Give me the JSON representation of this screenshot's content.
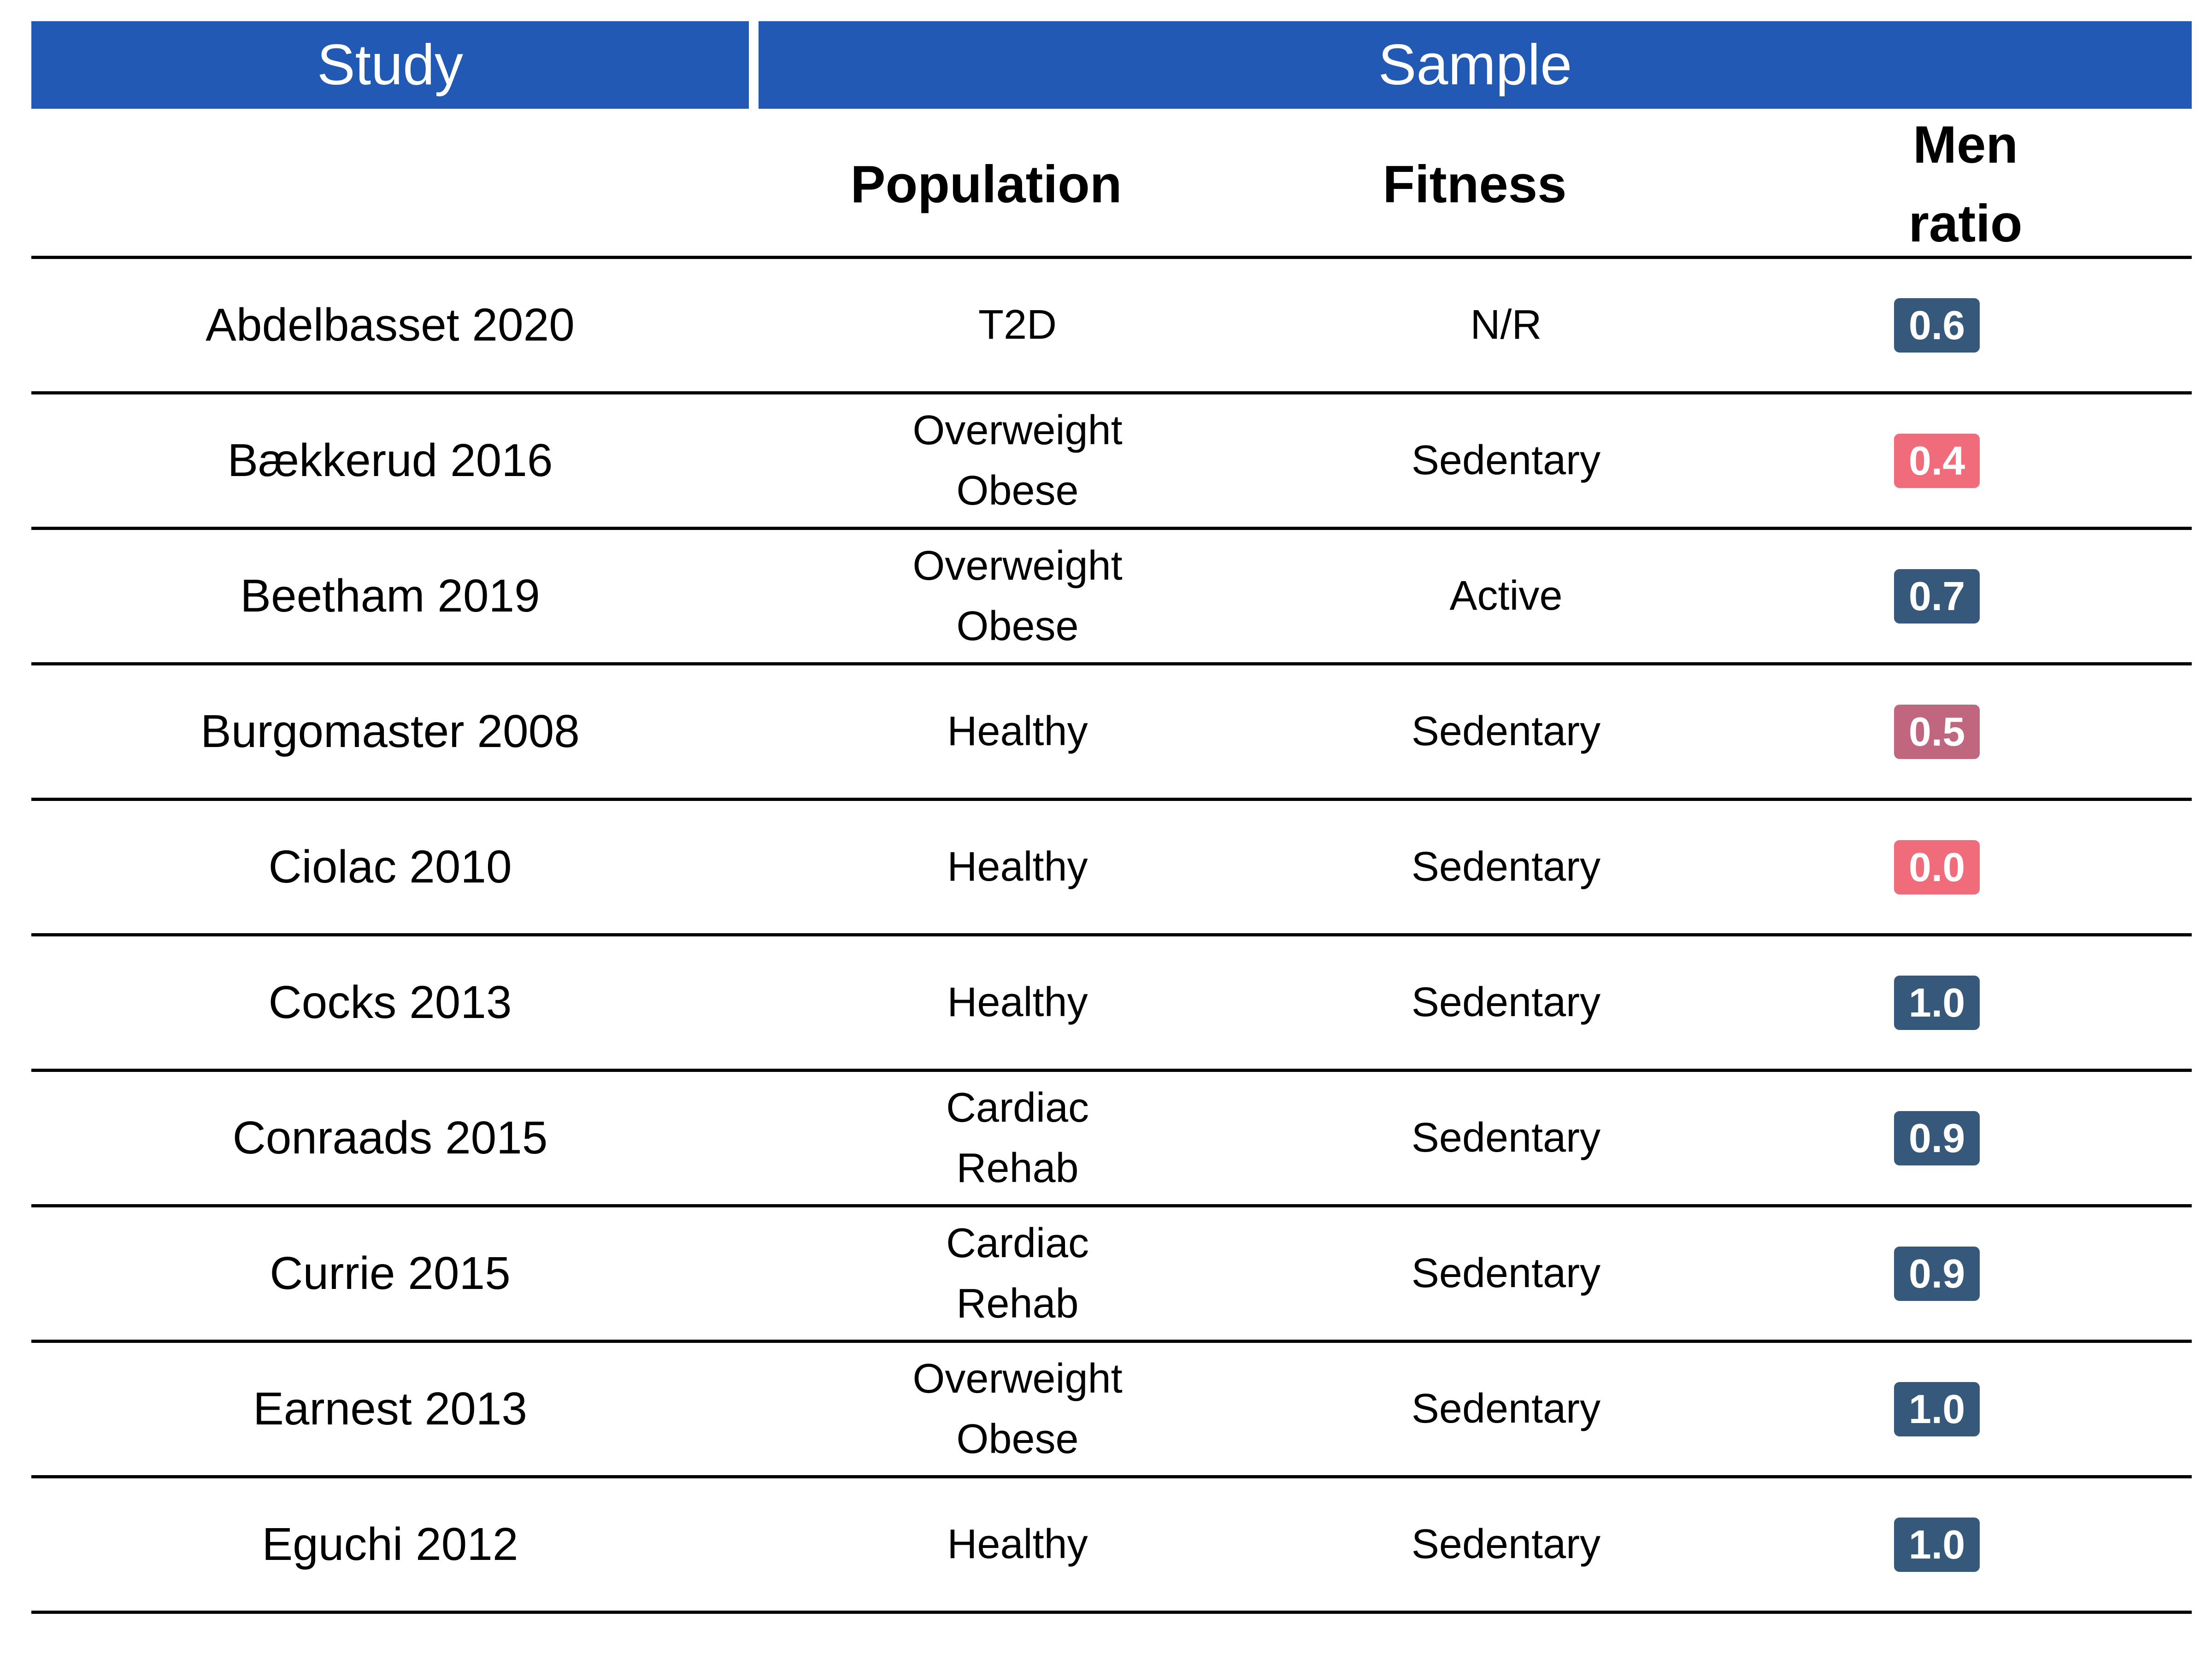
{
  "header": {
    "study": "Study",
    "sample": "Sample"
  },
  "columns": {
    "population": "Population",
    "fitness": "Fitness",
    "men_ratio_line1": "Men",
    "men_ratio_line2": "ratio"
  },
  "colors": {
    "header_blue": "#2159b5",
    "badge_dark": "#35587b",
    "badge_pink": "#f06c7b",
    "badge_mauve": "#c0677f"
  },
  "rows": [
    {
      "study": "Abdelbasset 2020",
      "population": [
        "T2D"
      ],
      "fitness": "N/R",
      "men_ratio": "0.6",
      "badge_color": "#35587b"
    },
    {
      "study": "Bækkerud 2016",
      "population": [
        "Overweight",
        "Obese"
      ],
      "fitness": "Sedentary",
      "men_ratio": "0.4",
      "badge_color": "#f06c7b"
    },
    {
      "study": "Beetham 2019",
      "population": [
        "Overweight",
        "Obese"
      ],
      "fitness": "Active",
      "men_ratio": "0.7",
      "badge_color": "#35587b"
    },
    {
      "study": "Burgomaster 2008",
      "population": [
        "Healthy"
      ],
      "fitness": "Sedentary",
      "men_ratio": "0.5",
      "badge_color": "#c0677f"
    },
    {
      "study": "Ciolac 2010",
      "population": [
        "Healthy"
      ],
      "fitness": "Sedentary",
      "men_ratio": "0.0",
      "badge_color": "#f06c7b"
    },
    {
      "study": "Cocks 2013",
      "population": [
        "Healthy"
      ],
      "fitness": "Sedentary",
      "men_ratio": "1.0",
      "badge_color": "#35587b"
    },
    {
      "study": "Conraads 2015",
      "population": [
        "Cardiac",
        "Rehab"
      ],
      "fitness": "Sedentary",
      "men_ratio": "0.9",
      "badge_color": "#35587b"
    },
    {
      "study": "Currie 2015",
      "population": [
        "Cardiac",
        "Rehab"
      ],
      "fitness": "Sedentary",
      "men_ratio": "0.9",
      "badge_color": "#35587b"
    },
    {
      "study": "Earnest 2013",
      "population": [
        "Overweight",
        "Obese"
      ],
      "fitness": "Sedentary",
      "men_ratio": "1.0",
      "badge_color": "#35587b"
    },
    {
      "study": "Eguchi 2012",
      "population": [
        "Healthy"
      ],
      "fitness": "Sedentary",
      "men_ratio": "1.0",
      "badge_color": "#35587b"
    }
  ]
}
